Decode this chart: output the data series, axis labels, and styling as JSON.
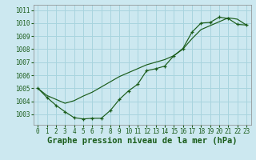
{
  "bg_color": "#cce8f0",
  "grid_color": "#a8d4de",
  "line_color": "#1a5c1a",
  "x_values": [
    0,
    1,
    2,
    3,
    4,
    5,
    6,
    7,
    8,
    9,
    10,
    11,
    12,
    13,
    14,
    15,
    16,
    17,
    18,
    19,
    20,
    21,
    22,
    23
  ],
  "pressure_main": [
    1005.0,
    1004.3,
    1003.7,
    1003.2,
    1002.75,
    1002.65,
    1002.7,
    1002.7,
    1003.3,
    1004.15,
    1004.8,
    1005.3,
    1006.35,
    1006.5,
    1006.7,
    1007.5,
    1008.05,
    1009.3,
    1010.0,
    1010.05,
    1010.45,
    1010.35,
    1009.9,
    1009.85
  ],
  "pressure_smooth": [
    1005.0,
    1004.45,
    1004.15,
    1003.85,
    1004.05,
    1004.4,
    1004.7,
    1005.1,
    1005.5,
    1005.9,
    1006.2,
    1006.5,
    1006.8,
    1007.0,
    1007.2,
    1007.5,
    1008.0,
    1008.8,
    1009.5,
    1009.8,
    1010.1,
    1010.4,
    1010.3,
    1009.85
  ],
  "ylim": [
    1002.2,
    1011.4
  ],
  "xlim": [
    -0.5,
    23.5
  ],
  "yticks": [
    1003,
    1004,
    1005,
    1006,
    1007,
    1008,
    1009,
    1010,
    1011
  ],
  "xticks": [
    0,
    1,
    2,
    3,
    4,
    5,
    6,
    7,
    8,
    9,
    10,
    11,
    12,
    13,
    14,
    15,
    16,
    17,
    18,
    19,
    20,
    21,
    22,
    23
  ],
  "xlabel": "Graphe pression niveau de la mer (hPa)",
  "tick_fontsize": 5.5,
  "xlabel_fontsize": 7.5
}
